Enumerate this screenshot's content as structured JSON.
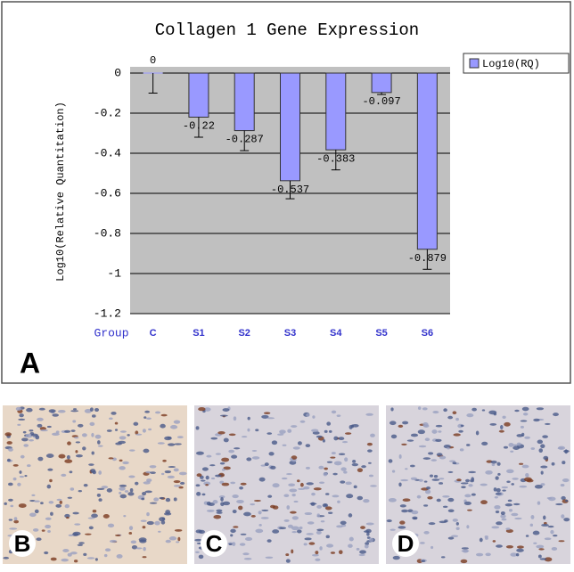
{
  "chart_data": {
    "type": "bar",
    "title": "Collagen 1 Gene Expression",
    "y_label": "Log10(Relative Quantitation)",
    "x_label": "Group",
    "categories": [
      "C",
      "S1",
      "S2",
      "S3",
      "S4",
      "S5",
      "S6"
    ],
    "series": [
      {
        "name": "Log10(RQ)",
        "color": "#9999ff",
        "values": [
          0,
          -0.22,
          -0.287,
          -0.537,
          -0.383,
          -0.097,
          -0.879
        ],
        "errors": [
          0.1,
          0.1,
          0.1,
          0.09,
          0.1,
          0.01,
          0.1
        ]
      }
    ],
    "ylim": [
      -1.2,
      0
    ],
    "yticks": [
      0,
      -0.2,
      -0.4,
      -0.6,
      -0.8,
      -1,
      -1.2
    ],
    "grid": true,
    "legend": "upper right"
  },
  "panels": [
    "A",
    "B",
    "C",
    "D"
  ]
}
